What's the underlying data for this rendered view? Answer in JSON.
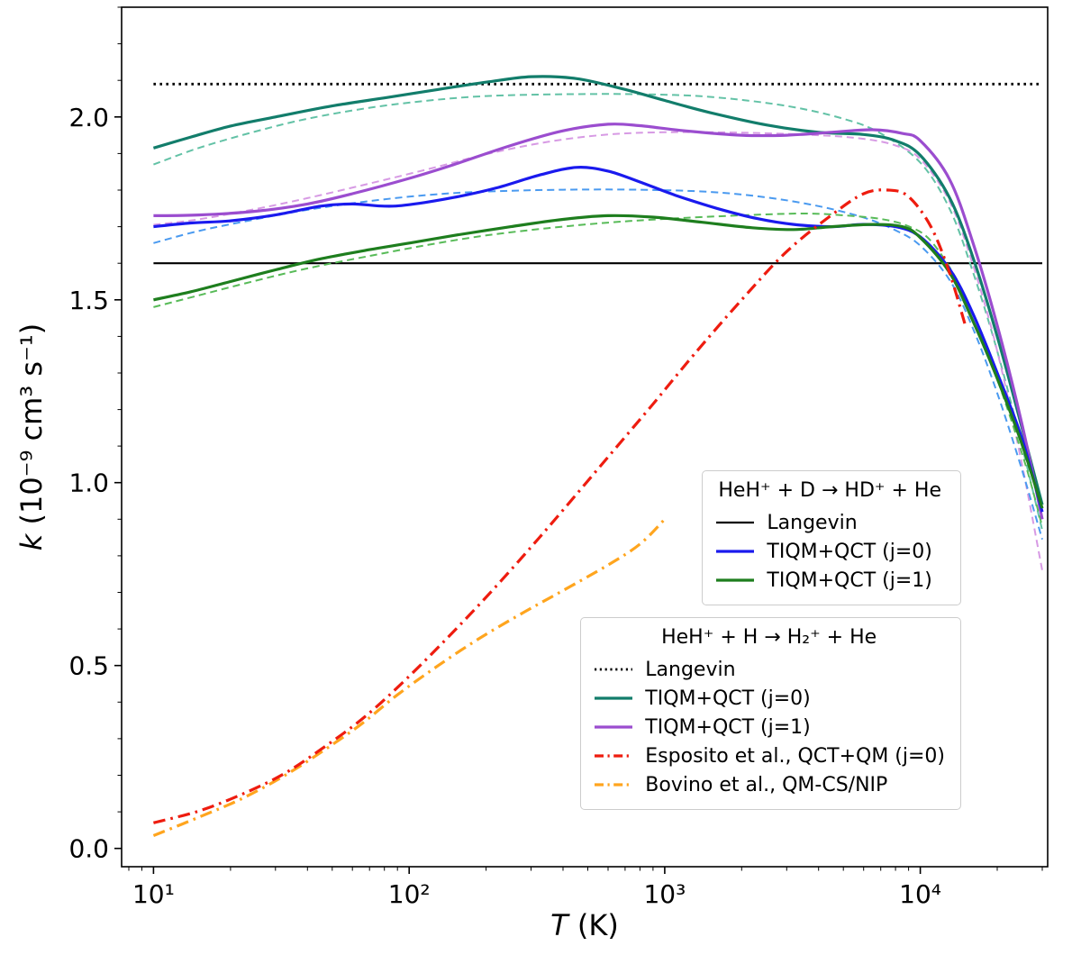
{
  "figure": {
    "xlabel": {
      "symbol": "T",
      "rest": " (K)"
    },
    "ylabel": {
      "symbol": "k",
      "rest": " (10⁻⁹ cm³ s⁻¹)"
    }
  },
  "chart_data": {
    "type": "line",
    "title": "",
    "x_axis": {
      "label": "T (K)",
      "scale": "log",
      "min": 7.5,
      "max": 31500,
      "ticks": [
        10,
        100,
        1000,
        10000
      ],
      "tick_labels": [
        "10¹",
        "10²",
        "10³",
        "10⁴"
      ]
    },
    "y_axis": {
      "label": "k (10⁻⁹ cm³ s⁻¹)",
      "scale": "linear",
      "min": -0.05,
      "max": 2.3,
      "ticks": [
        0.0,
        0.5,
        1.0,
        1.5,
        2.0
      ],
      "tick_labels": [
        "0.0",
        "0.5",
        "1.0",
        "1.5",
        "2.0"
      ]
    },
    "series": [
      {
        "id": "langevin_h",
        "name": "Langevin (HeH+ + H)",
        "color": "#000000",
        "dash": "dotted",
        "width": 2.8,
        "points": [
          [
            10,
            2.09
          ],
          [
            30000,
            2.09
          ]
        ]
      },
      {
        "id": "langevin_d",
        "name": "Langevin (HeH+ + D)",
        "color": "#000000",
        "dash": "solid",
        "width": 2.2,
        "points": [
          [
            10,
            1.6
          ],
          [
            30000,
            1.6
          ]
        ]
      },
      {
        "id": "tiqm_h_j0_fit",
        "name": "TIQM+QCT (j=0) fit, H",
        "color": "#63c2a6",
        "dash": "dashed",
        "width": 2,
        "points": [
          [
            10,
            1.87
          ],
          [
            15,
            1.915
          ],
          [
            25,
            1.96
          ],
          [
            40,
            1.995
          ],
          [
            70,
            2.025
          ],
          [
            120,
            2.045
          ],
          [
            200,
            2.057
          ],
          [
            400,
            2.062
          ],
          [
            800,
            2.062
          ],
          [
            1500,
            2.055
          ],
          [
            3000,
            2.03
          ],
          [
            5000,
            1.995
          ],
          [
            7000,
            1.955
          ],
          [
            10000,
            1.875
          ],
          [
            13000,
            1.75
          ],
          [
            16000,
            1.58
          ],
          [
            20000,
            1.36
          ],
          [
            25000,
            1.1
          ],
          [
            30000,
            0.87
          ]
        ]
      },
      {
        "id": "tiqm_h_j1_fit",
        "name": "TIQM+QCT (j=1) fit, H",
        "color": "#d79ae4",
        "dash": "dashed",
        "width": 2,
        "points": [
          [
            10,
            1.705
          ],
          [
            15,
            1.72
          ],
          [
            25,
            1.748
          ],
          [
            40,
            1.778
          ],
          [
            70,
            1.818
          ],
          [
            120,
            1.858
          ],
          [
            200,
            1.898
          ],
          [
            350,
            1.932
          ],
          [
            600,
            1.952
          ],
          [
            1000,
            1.958
          ],
          [
            2000,
            1.957
          ],
          [
            4000,
            1.95
          ],
          [
            6000,
            1.94
          ],
          [
            8000,
            1.922
          ],
          [
            10000,
            1.885
          ],
          [
            13000,
            1.77
          ],
          [
            16000,
            1.6
          ],
          [
            20000,
            1.36
          ],
          [
            25000,
            1.05
          ],
          [
            30000,
            0.76
          ]
        ]
      },
      {
        "id": "tiqm_d_j0_fit",
        "name": "TIQM+QCT (j=0) fit, D",
        "color": "#4a9af0",
        "dash": "dashed",
        "width": 2,
        "points": [
          [
            10,
            1.655
          ],
          [
            15,
            1.688
          ],
          [
            25,
            1.72
          ],
          [
            40,
            1.746
          ],
          [
            70,
            1.77
          ],
          [
            120,
            1.787
          ],
          [
            200,
            1.796
          ],
          [
            400,
            1.801
          ],
          [
            800,
            1.801
          ],
          [
            1500,
            1.795
          ],
          [
            2500,
            1.78
          ],
          [
            4000,
            1.756
          ],
          [
            6000,
            1.725
          ],
          [
            8000,
            1.69
          ],
          [
            10000,
            1.648
          ],
          [
            13000,
            1.555
          ],
          [
            16000,
            1.425
          ],
          [
            20000,
            1.245
          ],
          [
            25000,
            1.035
          ],
          [
            30000,
            0.845
          ]
        ]
      },
      {
        "id": "tiqm_d_j1_fit",
        "name": "TIQM+QCT (j=1) fit, D",
        "color": "#58bb58",
        "dash": "dashed",
        "width": 2,
        "points": [
          [
            10,
            1.48
          ],
          [
            15,
            1.512
          ],
          [
            25,
            1.552
          ],
          [
            40,
            1.586
          ],
          [
            70,
            1.62
          ],
          [
            120,
            1.651
          ],
          [
            200,
            1.676
          ],
          [
            350,
            1.696
          ],
          [
            600,
            1.711
          ],
          [
            1000,
            1.721
          ],
          [
            2000,
            1.731
          ],
          [
            3500,
            1.736
          ],
          [
            5000,
            1.731
          ],
          [
            7000,
            1.721
          ],
          [
            9000,
            1.701
          ],
          [
            11000,
            1.661
          ],
          [
            14000,
            1.551
          ],
          [
            17000,
            1.421
          ],
          [
            21000,
            1.241
          ],
          [
            26000,
            1.041
          ],
          [
            30000,
            0.88
          ]
        ]
      },
      {
        "id": "tiqm_h_j0",
        "name": "TIQM+QCT (j=0), H",
        "color": "#127d6b",
        "dash": "solid",
        "width": 3.2,
        "points": [
          [
            10,
            1.915
          ],
          [
            14,
            1.945
          ],
          [
            20,
            1.975
          ],
          [
            30,
            2.0
          ],
          [
            50,
            2.03
          ],
          [
            80,
            2.052
          ],
          [
            130,
            2.075
          ],
          [
            200,
            2.095
          ],
          [
            300,
            2.11
          ],
          [
            450,
            2.105
          ],
          [
            700,
            2.075
          ],
          [
            1000,
            2.045
          ],
          [
            1500,
            2.012
          ],
          [
            2500,
            1.978
          ],
          [
            4000,
            1.958
          ],
          [
            6000,
            1.952
          ],
          [
            8000,
            1.935
          ],
          [
            10000,
            1.895
          ],
          [
            13000,
            1.78
          ],
          [
            16000,
            1.62
          ],
          [
            20000,
            1.4
          ],
          [
            25000,
            1.15
          ],
          [
            30000,
            0.94
          ]
        ]
      },
      {
        "id": "tiqm_h_j1",
        "name": "TIQM+QCT (j=1), H",
        "color": "#9b4dcf",
        "dash": "solid",
        "width": 3.2,
        "points": [
          [
            10,
            1.73
          ],
          [
            15,
            1.732
          ],
          [
            25,
            1.742
          ],
          [
            40,
            1.762
          ],
          [
            60,
            1.79
          ],
          [
            100,
            1.832
          ],
          [
            150,
            1.87
          ],
          [
            250,
            1.922
          ],
          [
            400,
            1.962
          ],
          [
            600,
            1.98
          ],
          [
            800,
            1.976
          ],
          [
            1200,
            1.962
          ],
          [
            2000,
            1.95
          ],
          [
            3000,
            1.95
          ],
          [
            4500,
            1.958
          ],
          [
            6500,
            1.965
          ],
          [
            8500,
            1.955
          ],
          [
            10000,
            1.935
          ],
          [
            13000,
            1.83
          ],
          [
            16000,
            1.66
          ],
          [
            20000,
            1.43
          ],
          [
            25000,
            1.16
          ],
          [
            30000,
            0.9
          ]
        ]
      },
      {
        "id": "tiqm_d_j0",
        "name": "TIQM+QCT (j=0), D",
        "color": "#1a1aee",
        "dash": "solid",
        "width": 3.2,
        "points": [
          [
            10,
            1.7
          ],
          [
            14,
            1.71
          ],
          [
            20,
            1.716
          ],
          [
            30,
            1.732
          ],
          [
            45,
            1.756
          ],
          [
            60,
            1.762
          ],
          [
            80,
            1.756
          ],
          [
            100,
            1.76
          ],
          [
            150,
            1.78
          ],
          [
            220,
            1.806
          ],
          [
            320,
            1.84
          ],
          [
            450,
            1.862
          ],
          [
            600,
            1.852
          ],
          [
            800,
            1.822
          ],
          [
            1100,
            1.786
          ],
          [
            1600,
            1.75
          ],
          [
            2300,
            1.722
          ],
          [
            3200,
            1.706
          ],
          [
            4500,
            1.7
          ],
          [
            6000,
            1.706
          ],
          [
            8000,
            1.7
          ],
          [
            10000,
            1.672
          ],
          [
            13000,
            1.585
          ],
          [
            16000,
            1.465
          ],
          [
            20000,
            1.3
          ],
          [
            25000,
            1.12
          ],
          [
            30000,
            0.92
          ]
        ]
      },
      {
        "id": "tiqm_d_j1",
        "name": "TIQM+QCT (j=1), D",
        "color": "#1e7e1e",
        "dash": "solid",
        "width": 3.2,
        "points": [
          [
            10,
            1.5
          ],
          [
            14,
            1.522
          ],
          [
            20,
            1.55
          ],
          [
            30,
            1.582
          ],
          [
            45,
            1.612
          ],
          [
            70,
            1.637
          ],
          [
            100,
            1.655
          ],
          [
            150,
            1.676
          ],
          [
            250,
            1.7
          ],
          [
            400,
            1.72
          ],
          [
            600,
            1.73
          ],
          [
            900,
            1.726
          ],
          [
            1400,
            1.712
          ],
          [
            2200,
            1.697
          ],
          [
            3200,
            1.692
          ],
          [
            4500,
            1.7
          ],
          [
            6500,
            1.706
          ],
          [
            8500,
            1.7
          ],
          [
            10000,
            1.67
          ],
          [
            13000,
            1.575
          ],
          [
            16000,
            1.445
          ],
          [
            20000,
            1.285
          ],
          [
            25000,
            1.105
          ],
          [
            30000,
            0.93
          ]
        ]
      },
      {
        "id": "bovino_h",
        "name": "Bovino et al., QM-CS/NIP",
        "color": "#ffa51e",
        "dash": "dashdot",
        "width": 3.2,
        "points": [
          [
            10,
            0.035
          ],
          [
            15,
            0.085
          ],
          [
            22,
            0.135
          ],
          [
            32,
            0.196
          ],
          [
            45,
            0.262
          ],
          [
            65,
            0.34
          ],
          [
            90,
            0.42
          ],
          [
            130,
            0.5
          ],
          [
            190,
            0.576
          ],
          [
            280,
            0.645
          ],
          [
            400,
            0.705
          ],
          [
            600,
            0.775
          ],
          [
            800,
            0.832
          ],
          [
            1000,
            0.9
          ]
        ]
      },
      {
        "id": "esposito_h_j0",
        "name": "Esposito et al., QCT+QM (j=0)",
        "color": "#ee1c0f",
        "dash": "dashdot",
        "width": 3.2,
        "points": [
          [
            10,
            0.07
          ],
          [
            15,
            0.102
          ],
          [
            22,
            0.147
          ],
          [
            32,
            0.202
          ],
          [
            45,
            0.27
          ],
          [
            65,
            0.352
          ],
          [
            90,
            0.44
          ],
          [
            130,
            0.55
          ],
          [
            190,
            0.67
          ],
          [
            280,
            0.8
          ],
          [
            400,
            0.925
          ],
          [
            600,
            1.07
          ],
          [
            900,
            1.215
          ],
          [
            1300,
            1.35
          ],
          [
            2000,
            1.5
          ],
          [
            3000,
            1.632
          ],
          [
            4500,
            1.732
          ],
          [
            6000,
            1.79
          ],
          [
            7500,
            1.8
          ],
          [
            9000,
            1.782
          ],
          [
            11000,
            1.7
          ],
          [
            13000,
            1.575
          ],
          [
            15000,
            1.43
          ]
        ]
      }
    ],
    "legends": [
      {
        "title": "HeH⁺ + D → HD⁺ + He",
        "position": "upper-right-inner",
        "entries": [
          {
            "label": "Langevin",
            "series": "langevin_d"
          },
          {
            "label": "TIQM+QCT (j=0)",
            "series": "tiqm_d_j0"
          },
          {
            "label": "TIQM+QCT (j=1)",
            "series": "tiqm_d_j1"
          }
        ]
      },
      {
        "title": "HeH⁺ + H → H₂⁺ + He",
        "position": "lower-right-inner",
        "entries": [
          {
            "label": "Langevin",
            "series": "langevin_h"
          },
          {
            "label": "TIQM+QCT (j=0)",
            "series": "tiqm_h_j0"
          },
          {
            "label": "TIQM+QCT (j=1)",
            "series": "tiqm_h_j1"
          },
          {
            "label": "Esposito et al., QCT+QM (j=0)",
            "series": "esposito_h_j0"
          },
          {
            "label": "Bovino et al., QM-CS/NIP",
            "series": "bovino_h"
          }
        ]
      }
    ]
  }
}
